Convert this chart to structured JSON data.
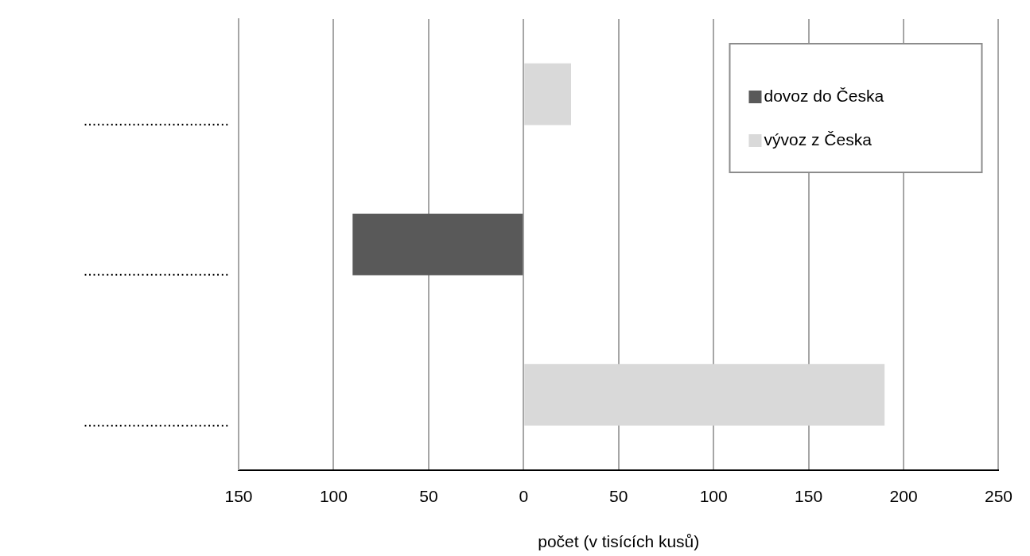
{
  "chart_data": {
    "type": "bar",
    "orientation": "horizontal",
    "xlabel": "počet (v tisících kusů)",
    "categories": [
      ".................................",
      ".................................",
      "................................."
    ],
    "series": [
      {
        "name": "dovoz do Česka",
        "color": "#595959",
        "values": [
          null,
          -90,
          null
        ]
      },
      {
        "name": "vývoz z Česka",
        "color": "#d9d9d9",
        "values": [
          25,
          null,
          190
        ]
      }
    ],
    "xlim": [
      -150,
      250
    ],
    "xticks": [
      {
        "value": -150,
        "label": "150"
      },
      {
        "value": -100,
        "label": "100"
      },
      {
        "value": -50,
        "label": "50"
      },
      0,
      50,
      100,
      150,
      200,
      250
    ],
    "grid": "x",
    "legend": "top right"
  }
}
